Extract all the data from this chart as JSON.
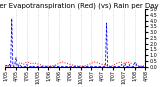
{
  "title": "Milwaukee Weather Evapotranspiration (Red) (vs) Rain per Day (Blue) (Inches)",
  "background_color": "#ffffff",
  "grid_color": "#aaaaaa",
  "ylim": [
    0,
    5.0
  ],
  "xlim": [
    0,
    130
  ],
  "y_ticks": [
    0.0,
    0.5,
    1.0,
    1.5,
    2.0,
    2.5,
    3.0,
    3.5,
    4.0,
    4.5,
    5.0
  ],
  "x_tick_positions": [
    0,
    10,
    20,
    30,
    40,
    50,
    60,
    70,
    80,
    90,
    100,
    110,
    120,
    130
  ],
  "x_tick_labels": [
    "1/05",
    "4/05",
    "7/05",
    "10/05",
    "1/06",
    "4/06",
    "7/06",
    "10/06",
    "1/07",
    "4/07",
    "7/07",
    "10/07",
    "1/08",
    "4/08"
  ],
  "rain_x": [
    0,
    1,
    2,
    3,
    4,
    5,
    6,
    7,
    8,
    9,
    10,
    11,
    12,
    13,
    14,
    15,
    16,
    17,
    18,
    19,
    20,
    21,
    22,
    23,
    24,
    25,
    26,
    27,
    28,
    29,
    30,
    31,
    32,
    33,
    34,
    35,
    36,
    37,
    38,
    39,
    40,
    41,
    42,
    43,
    44,
    45,
    46,
    47,
    48,
    49,
    50,
    51,
    52,
    53,
    54,
    55,
    56,
    57,
    58,
    59,
    60,
    61,
    62,
    63,
    64,
    65,
    66,
    67,
    68,
    69,
    70,
    71,
    72,
    73,
    74,
    75,
    76,
    77,
    78,
    79,
    80,
    81,
    82,
    83,
    84,
    85,
    86,
    87,
    88,
    89,
    90,
    91,
    92,
    93,
    94,
    95,
    96,
    97,
    98,
    99,
    100,
    101,
    102,
    103,
    104,
    105,
    106,
    107,
    108,
    109,
    110,
    111,
    112,
    113,
    114,
    115,
    116,
    117,
    118,
    119,
    120,
    121,
    122,
    123,
    124,
    125,
    126,
    127,
    128,
    129,
    130
  ],
  "rain_y": [
    0.05,
    0.1,
    0.05,
    0.0,
    0.2,
    0.0,
    4.2,
    0.1,
    0.0,
    0.3,
    0.8,
    0.0,
    0.0,
    0.2,
    0.1,
    0.0,
    0.0,
    0.0,
    0.0,
    0.0,
    0.2,
    0.0,
    0.0,
    0.0,
    0.0,
    0.1,
    0.0,
    0.0,
    0.0,
    0.0,
    0.0,
    0.0,
    0.0,
    0.0,
    0.0,
    0.0,
    0.0,
    0.0,
    0.0,
    0.0,
    0.0,
    0.0,
    0.0,
    0.0,
    0.0,
    0.0,
    0.05,
    0.1,
    0.05,
    0.0,
    0.0,
    0.0,
    0.0,
    0.0,
    0.0,
    0.0,
    0.0,
    0.0,
    0.0,
    0.0,
    0.0,
    0.0,
    0.0,
    0.0,
    0.0,
    0.0,
    0.0,
    0.0,
    0.0,
    0.0,
    0.0,
    0.0,
    0.0,
    0.0,
    0.0,
    0.0,
    0.0,
    0.0,
    0.0,
    0.0,
    0.0,
    0.0,
    0.0,
    0.0,
    0.0,
    0.0,
    0.0,
    0.0,
    0.0,
    0.0,
    0.0,
    0.0,
    0.0,
    0.0,
    3.8,
    0.0,
    0.0,
    0.0,
    0.0,
    0.0,
    0.0,
    0.0,
    0.0,
    0.0,
    0.0,
    0.0,
    0.0,
    0.0,
    0.2,
    0.0,
    0.0,
    0.3,
    0.0,
    0.0,
    0.0,
    0.2,
    0.0,
    0.0,
    0.0,
    0.0,
    0.3,
    0.4,
    0.1,
    0.0,
    0.0,
    0.0,
    0.1,
    0.0,
    0.0,
    0.0,
    0.0
  ],
  "et_x": [
    0,
    1,
    2,
    3,
    4,
    5,
    6,
    7,
    8,
    9,
    10,
    11,
    12,
    13,
    14,
    15,
    16,
    17,
    18,
    19,
    20,
    21,
    22,
    23,
    24,
    25,
    26,
    27,
    28,
    29,
    30,
    31,
    32,
    33,
    34,
    35,
    36,
    37,
    38,
    39,
    40,
    41,
    42,
    43,
    44,
    45,
    46,
    47,
    48,
    49,
    50,
    51,
    52,
    53,
    54,
    55,
    56,
    57,
    58,
    59,
    60,
    61,
    62,
    63,
    64,
    65,
    66,
    67,
    68,
    69,
    70,
    71,
    72,
    73,
    74,
    75,
    76,
    77,
    78,
    79,
    80,
    81,
    82,
    83,
    84,
    85,
    86,
    87,
    88,
    89,
    90,
    91,
    92,
    93,
    94,
    95,
    96,
    97,
    98,
    99,
    100,
    101,
    102,
    103,
    104,
    105,
    106,
    107,
    108,
    109,
    110,
    111,
    112,
    113,
    114,
    115,
    116,
    117,
    118,
    119,
    120,
    121,
    122,
    123,
    124,
    125,
    126,
    127,
    128,
    129,
    130
  ],
  "et_y": [
    0.05,
    0.06,
    0.07,
    0.06,
    0.1,
    0.1,
    0.08,
    0.12,
    0.15,
    0.2,
    0.25,
    0.2,
    0.15,
    0.3,
    0.35,
    0.3,
    0.25,
    0.2,
    0.3,
    0.35,
    0.4,
    0.38,
    0.35,
    0.3,
    0.28,
    0.25,
    0.3,
    0.32,
    0.3,
    0.28,
    0.25,
    0.2,
    0.18,
    0.15,
    0.1,
    0.08,
    0.05,
    0.04,
    0.05,
    0.06,
    0.05,
    0.04,
    0.05,
    0.07,
    0.08,
    0.1,
    0.12,
    0.15,
    0.2,
    0.25,
    0.3,
    0.35,
    0.38,
    0.4,
    0.38,
    0.35,
    0.3,
    0.28,
    0.25,
    0.22,
    0.2,
    0.18,
    0.15,
    0.12,
    0.1,
    0.08,
    0.06,
    0.05,
    0.04,
    0.05,
    0.06,
    0.05,
    0.04,
    0.05,
    0.07,
    0.1,
    0.12,
    0.15,
    0.2,
    0.25,
    0.3,
    0.35,
    0.38,
    0.4,
    0.38,
    0.35,
    0.3,
    0.28,
    0.25,
    0.22,
    0.2,
    0.18,
    0.15,
    0.12,
    0.1,
    0.08,
    0.06,
    0.05,
    0.06,
    0.08,
    0.1,
    0.15,
    0.2,
    0.25,
    0.3,
    0.35,
    0.38,
    0.4,
    0.38,
    0.35,
    0.3,
    0.28,
    0.35,
    0.4,
    0.38,
    0.35,
    0.32,
    0.28,
    0.25,
    0.2,
    0.15,
    0.12,
    0.1,
    0.08,
    0.06,
    0.05,
    0.04,
    0.05,
    0.06,
    0.05,
    0.04
  ],
  "rain_color": "#0000ff",
  "et_color": "#ff0000",
  "baseline_color": "#000000",
  "title_fontsize": 5,
  "tick_fontsize": 3.5,
  "grid_positions": [
    10,
    20,
    30,
    40,
    50,
    60,
    70,
    80,
    90,
    100,
    110,
    120,
    130
  ]
}
